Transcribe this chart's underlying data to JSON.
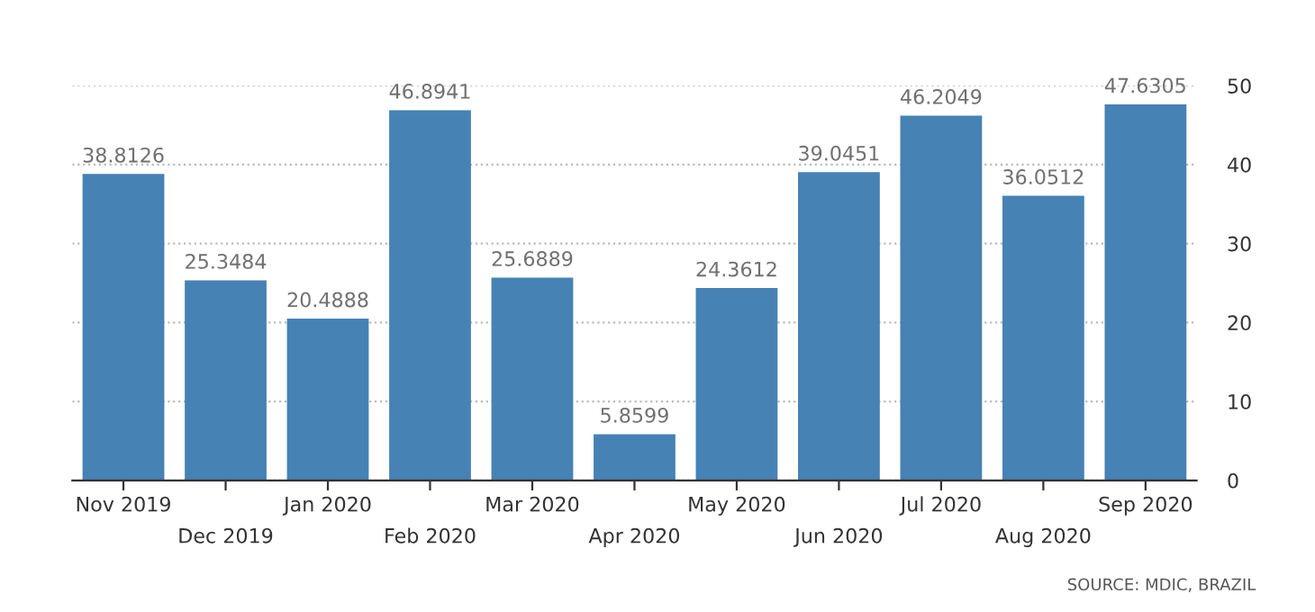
{
  "chart_data": {
    "type": "bar",
    "categories": [
      "Nov 2019",
      "Dec 2019",
      "Jan 2020",
      "Feb 2020",
      "Mar 2020",
      "Apr 2020",
      "May 2020",
      "Jun 2020",
      "Jul 2020",
      "Aug 2020",
      "Sep 2020"
    ],
    "values": [
      38.8126,
      25.3484,
      20.4888,
      46.8941,
      25.6889,
      5.8599,
      24.3612,
      39.0451,
      46.2049,
      36.0512,
      47.6305
    ],
    "color": "#4682b4",
    "ylim": [
      0,
      50
    ],
    "yticks": [
      0,
      10,
      20,
      30,
      40,
      50
    ],
    "grid": "y",
    "data_labels": true,
    "annotations": [
      "SOURCE: MDIC, BRAZIL"
    ]
  }
}
